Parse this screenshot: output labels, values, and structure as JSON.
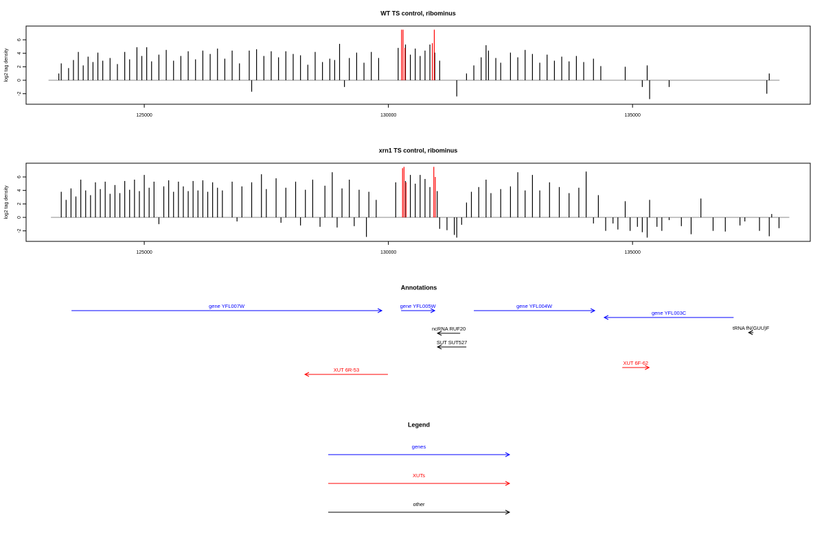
{
  "chart_data": [
    {
      "type": "spike",
      "title": "WT TS control, ribominus",
      "y_label": "log2 tag density",
      "xlim": [
        122580,
        138640
      ],
      "ylim": [
        -3.56,
        8.04
      ],
      "xticks": [
        125000,
        130000,
        135000
      ],
      "yticks": [
        -2,
        0,
        2,
        4,
        6
      ],
      "series": [
        {
          "color": "#000000",
          "x": [
            123250,
            123300,
            123450,
            123550,
            123650,
            123750,
            123850,
            123950,
            124050,
            124150,
            124300,
            124450,
            124600,
            124700,
            124850,
            124950,
            125050,
            125150,
            125300,
            125450,
            125600,
            125750,
            125900,
            126050,
            126200,
            126350,
            126500,
            126650,
            126800,
            126950,
            127150,
            127200,
            127300,
            127450,
            127600,
            127750,
            127900,
            128050,
            128200,
            128350,
            128500,
            128650,
            128800,
            128900,
            129000,
            129100,
            129200,
            129350,
            129500,
            129650,
            129800,
            130200,
            130350,
            130450,
            130550,
            130650,
            130750,
            130850,
            130950,
            131050,
            131400,
            131600,
            131750,
            131900,
            132000,
            132050,
            132200,
            132300,
            132500,
            132650,
            132800,
            132950,
            133100,
            133250,
            133400,
            133550,
            133700,
            133850,
            134000,
            134200,
            134350,
            134850,
            135200,
            135300,
            135350,
            135750,
            137750,
            137800
          ],
          "values": [
            1,
            2.5,
            1.8,
            3,
            4.2,
            2.2,
            3.5,
            2.7,
            4.1,
            2.9,
            3.3,
            2.4,
            4.2,
            3.1,
            4.9,
            3.6,
            4.9,
            2.8,
            3.8,
            4.5,
            2.9,
            3.6,
            4.3,
            3.1,
            4.4,
            3.9,
            4.7,
            3.2,
            4.4,
            2.5,
            4.4,
            -1.7,
            4.6,
            3.6,
            4.3,
            3.4,
            4.3,
            3.9,
            3.7,
            2.3,
            4.2,
            2.7,
            3.2,
            3.0,
            5.4,
            -1.0,
            3.3,
            4.1,
            2.6,
            4.2,
            3.3,
            4.8,
            5.3,
            3.8,
            4.7,
            3.6,
            4.4,
            5.3,
            4.1,
            2.9,
            -2.4,
            1.0,
            2.2,
            3.4,
            5.2,
            4.4,
            3.3,
            2.6,
            4.1,
            3.4,
            4.5,
            3.9,
            2.6,
            3.8,
            2.9,
            3.5,
            2.8,
            3.6,
            2.7,
            3.2,
            2.1,
            2.0,
            -1.0,
            2.2,
            -2.8,
            -1.0,
            -2.0,
            1.0
          ]
        },
        {
          "color": "#ff0000",
          "x": [
            130270,
            130300,
            130340,
            130900,
            130940
          ],
          "values": [
            7.5,
            7.5,
            4.8,
            5.5,
            7.5
          ]
        }
      ]
    },
    {
      "type": "spike",
      "title": "xrn1 TS control, ribominus",
      "y_label": "log2 tag density",
      "xlim": [
        122580,
        138640
      ],
      "ylim": [
        -3.56,
        8.04
      ],
      "xticks": [
        125000,
        130000,
        135000
      ],
      "yticks": [
        -2,
        0,
        2,
        4,
        6
      ],
      "series": [
        {
          "color": "#000000",
          "x": [
            123300,
            123400,
            123500,
            123600,
            123700,
            123800,
            123900,
            124000,
            124100,
            124200,
            124300,
            124400,
            124500,
            124600,
            124700,
            124800,
            124900,
            125000,
            125100,
            125200,
            125300,
            125400,
            125500,
            125600,
            125700,
            125800,
            125900,
            126000,
            126100,
            126200,
            126300,
            126400,
            126500,
            126600,
            126800,
            126900,
            127000,
            127200,
            127400,
            127500,
            127700,
            127800,
            127900,
            128100,
            128200,
            128300,
            128450,
            128600,
            128700,
            128850,
            128950,
            129050,
            129200,
            129300,
            129400,
            129550,
            129600,
            129750,
            130150,
            130350,
            130450,
            130550,
            130650,
            130750,
            130850,
            131000,
            131050,
            131200,
            131350,
            131400,
            131500,
            131600,
            131700,
            131850,
            132000,
            132100,
            132300,
            132500,
            132650,
            132800,
            132950,
            133100,
            133300,
            133500,
            133700,
            133900,
            134050,
            134200,
            134300,
            134450,
            134600,
            134700,
            134850,
            134950,
            135100,
            135200,
            135300,
            135350,
            135500,
            135600,
            135750,
            136000,
            136200,
            136400,
            136650,
            136900,
            137200,
            137300,
            137600,
            137800,
            137850,
            138000
          ],
          "values": [
            3.8,
            2.6,
            4.3,
            3.1,
            5.6,
            4.0,
            3.3,
            5.2,
            4.2,
            5.3,
            3.5,
            4.8,
            3.6,
            5.4,
            4.1,
            5.6,
            3.9,
            6.3,
            4.4,
            5.3,
            -1.0,
            4.6,
            5.5,
            3.8,
            5.3,
            4.6,
            3.9,
            5.4,
            4.0,
            5.5,
            3.8,
            5.2,
            4.4,
            4.0,
            5.3,
            -0.6,
            4.6,
            5.2,
            6.4,
            4.2,
            5.8,
            -0.8,
            4.4,
            5.3,
            -1.2,
            4.1,
            5.6,
            -1.4,
            4.7,
            6.7,
            -1.5,
            4.3,
            5.6,
            -1.3,
            4.1,
            -2.9,
            3.8,
            2.6,
            5.2,
            5.4,
            6.3,
            5.0,
            6.3,
            5.7,
            4.5,
            3.9,
            -1.7,
            -1.9,
            -2.6,
            -3.0,
            -1.1,
            2.2,
            3.8,
            4.5,
            5.6,
            3.6,
            4.2,
            4.6,
            6.7,
            4.0,
            6.3,
            4.0,
            5.2,
            4.5,
            3.6,
            4.4,
            6.8,
            -0.9,
            3.3,
            -2.0,
            -0.9,
            -1.8,
            2.4,
            -2.0,
            -1.4,
            -2.2,
            -3.0,
            2.6,
            -1.4,
            -2.0,
            -0.4,
            -1.3,
            -2.5,
            2.8,
            -2.0,
            -2.1,
            -1.2,
            -0.6,
            -2.0,
            -2.8,
            0.5,
            -1.6
          ]
        },
        {
          "color": "#ff0000",
          "x": [
            130290,
            130320,
            130360,
            130930,
            130960
          ],
          "values": [
            7.3,
            7.5,
            5.2,
            7.5,
            6.0
          ]
        }
      ]
    }
  ],
  "annotations": {
    "title": "Annotations",
    "items": [
      {
        "label": "gene YFL007W",
        "start": 123510,
        "end": 129866,
        "direction": "right",
        "color": "#0000ff"
      },
      {
        "label": "gene YFL005W",
        "start": 130260,
        "end": 130950,
        "direction": "right",
        "color": "#0000ff"
      },
      {
        "label": "gene YFL004W",
        "start": 131750,
        "end": 134226,
        "direction": "right",
        "color": "#0000ff"
      },
      {
        "label": "gene YFL003C",
        "start": 134420,
        "end": 137070,
        "direction": "left",
        "color": "#0000ff"
      },
      {
        "label": "ncRNA RUF20",
        "start": 131005,
        "end": 131470,
        "direction": "left",
        "color": "#000000"
      },
      {
        "label": "SUT SUT527",
        "start": 131005,
        "end": 131596,
        "direction": "left",
        "color": "#000000"
      },
      {
        "label": "tRNA fN(GUU)F",
        "start": 137377,
        "end": 137475,
        "direction": "left",
        "color": "#000000"
      },
      {
        "label": "XUT 6R-53",
        "start": 128290,
        "end": 129990,
        "direction": "left",
        "color": "#ff0000"
      },
      {
        "label": "XUT 6F-62",
        "start": 134790,
        "end": 135340,
        "direction": "right",
        "color": "#ff0000"
      }
    ]
  },
  "legend": {
    "title": "Legend",
    "items": [
      {
        "name": "genes",
        "color": "#0000ff"
      },
      {
        "name": "XUTs",
        "color": "#ff0000"
      },
      {
        "name": "other",
        "color": "#000000"
      }
    ]
  }
}
